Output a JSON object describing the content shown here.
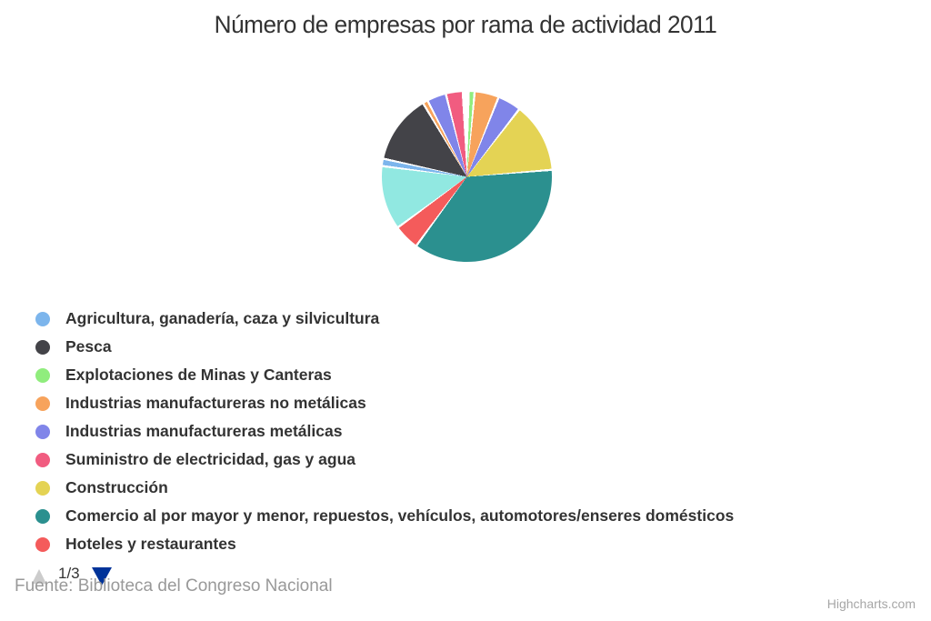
{
  "title": "Número de empresas por rama de actividad 2011",
  "legend": {
    "pagination": {
      "label": "1/3",
      "active_color": "#003399",
      "inactive_color": "#cccccc"
    },
    "items": [
      {
        "label": "Agricultura, ganadería, caza y silvicultura",
        "color": "#7cb5ec"
      },
      {
        "label": "Pesca",
        "color": "#434348"
      },
      {
        "label": "Explotaciones de Minas y Canteras",
        "color": "#90ed7d"
      },
      {
        "label": "Industrias manufactureras no metálicas",
        "color": "#f7a35c"
      },
      {
        "label": "Industrias manufactureras metálicas",
        "color": "#8085e9"
      },
      {
        "label": "Suministro de electricidad, gas y agua",
        "color": "#f15c80"
      },
      {
        "label": "Construcción",
        "color": "#e4d354"
      },
      {
        "label": "Comercio al por mayor y menor, repuestos, vehículos, automotores/enseres domésticos",
        "color": "#2b908f"
      },
      {
        "label": "Hoteles y restaurantes",
        "color": "#f45b5b"
      }
    ]
  },
  "footer": {
    "source": "Fuente: Biblioteca del Congreso Nacional"
  },
  "credits": {
    "label": "Highcharts.com"
  },
  "chart_data": {
    "type": "pie",
    "title": "Número de empresas por rama de actividad 2011",
    "legend_position": "bottom-left",
    "legend_page_shown": "1/3",
    "start_angle_deg": 0,
    "note": "Slices listed clockwise from 12 o'clock; angles estimated from pixels; slices with empty labels belong to legend pages 2-3 which are not visible in the screenshot. Legend items Agricultura, Pesca and Suministro de electricidad have slices too small to be visible.",
    "slices": [
      {
        "label": "Explotaciones de Minas y Canteras",
        "color": "#90ed7d",
        "start_deg": 2.0,
        "end_deg": 4.5,
        "pct": 0.7
      },
      {
        "label": "Industrias manufactureras no metálicas",
        "color": "#f7a35c",
        "start_deg": 6.0,
        "end_deg": 21.0,
        "pct": 4.2
      },
      {
        "label": "Industrias manufactureras metálicas",
        "color": "#8085e9",
        "start_deg": 22.5,
        "end_deg": 37.0,
        "pct": 4.0
      },
      {
        "label": "Construcción",
        "color": "#e4d354",
        "start_deg": 38.5,
        "end_deg": 84.5,
        "pct": 12.8
      },
      {
        "label": "Comercio al por mayor y menor, repuestos, vehículos, automotores/enseres domésticos",
        "color": "#2b908f",
        "start_deg": 86.0,
        "end_deg": 215.5,
        "pct": 36.0
      },
      {
        "label": "Hoteles y restaurantes",
        "color": "#f45b5b",
        "start_deg": 217.0,
        "end_deg": 233.0,
        "pct": 4.4
      },
      {
        "label": "",
        "color": "#91e8e1",
        "start_deg": 234.5,
        "end_deg": 276.5,
        "pct": 11.7
      },
      {
        "label": "",
        "color": "#7cb5ec",
        "start_deg": 278.0,
        "end_deg": 281.5,
        "pct": 1.0
      },
      {
        "label": "",
        "color": "#434348",
        "start_deg": 283.0,
        "end_deg": 328.5,
        "pct": 12.6
      },
      {
        "label": "",
        "color": "#f7a35c",
        "start_deg": 330.0,
        "end_deg": 332.0,
        "pct": 0.6
      },
      {
        "label": "",
        "color": "#8085e9",
        "start_deg": 333.5,
        "end_deg": 345.0,
        "pct": 3.2
      },
      {
        "label": "",
        "color": "#f15c80",
        "start_deg": 346.5,
        "end_deg": 356.5,
        "pct": 2.8
      }
    ]
  }
}
